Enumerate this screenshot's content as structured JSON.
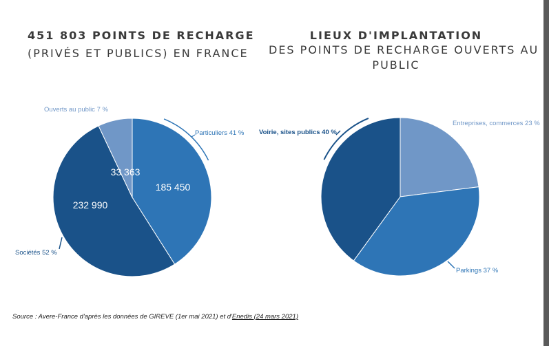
{
  "left_chart": {
    "title_line1": "451 803 POINTS DE RECHARGE",
    "title_line2": "(PRIVÉS ET PUBLICS) EN FRANCE"
  },
  "right_chart": {
    "title_line1": "LIEUX D'IMPLANTATION",
    "title_line2": "DES POINTS DE RECHARGE OUVERTS AU",
    "title_line3": "PUBLIC"
  },
  "chart_data": [
    {
      "type": "pie",
      "title": "451 803 POINTS DE RECHARGE (PRIVÉS ET PUBLICS) EN FRANCE",
      "total": 451803,
      "slices": [
        {
          "label": "Particuliers 41 %",
          "percent": 41,
          "value": 185450,
          "value_label": "185 450",
          "color": "#2e75b6"
        },
        {
          "label": "Sociétés 52 %",
          "percent": 52,
          "value": 232990,
          "value_label": "232 990",
          "color": "#1a5289"
        },
        {
          "label": "Ouverts au public 7 %",
          "percent": 7,
          "value": 33363,
          "value_label": "33 363",
          "color": "#7097c7"
        }
      ]
    },
    {
      "type": "pie",
      "title": "LIEUX D'IMPLANTATION DES POINTS DE RECHARGE OUVERTS AU PUBLIC",
      "slices": [
        {
          "label": "Entreprises, commerces 23 %",
          "percent": 23,
          "color": "#7097c7"
        },
        {
          "label": "Parkings 37 %",
          "percent": 37,
          "color": "#2e75b6"
        },
        {
          "label": "Voirie, sites publics 40 %",
          "percent": 40,
          "color": "#1a5289"
        }
      ]
    }
  ],
  "source": {
    "prefix": "Source : Avere-France d'après les données de GIREVE (1er mai 2021) et d'",
    "link": "Enedis (24 mars 2021)"
  }
}
